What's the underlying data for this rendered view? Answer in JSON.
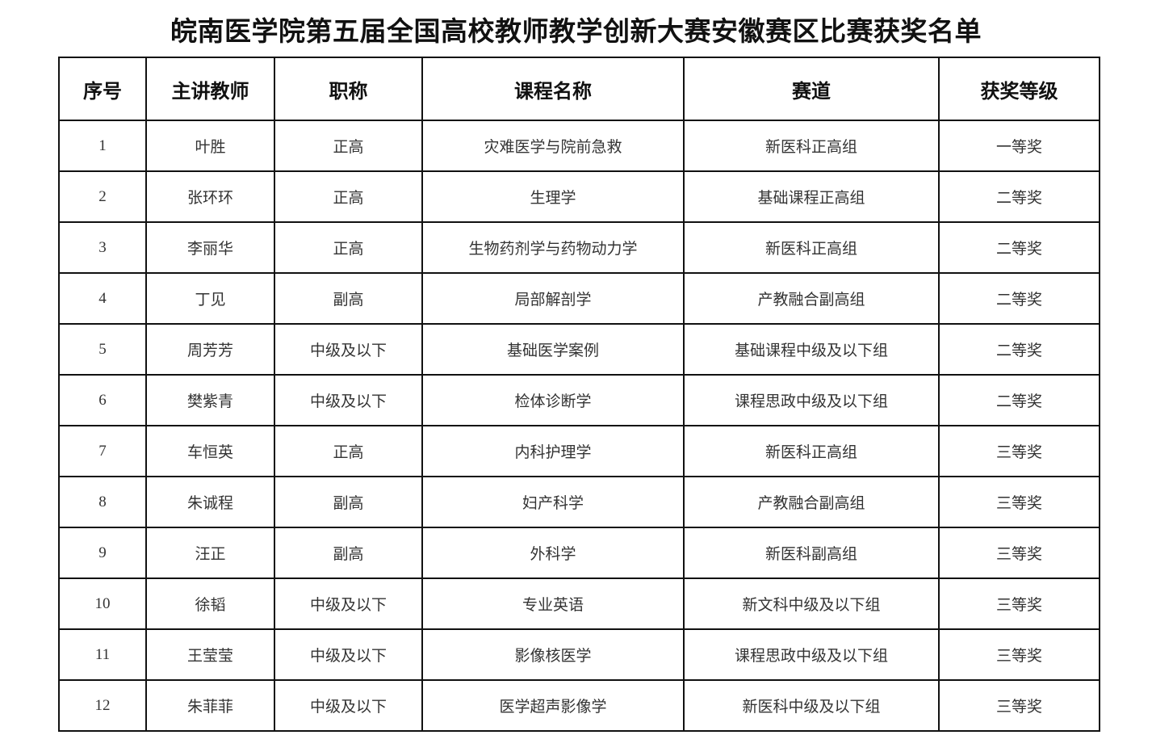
{
  "title": "皖南医学院第五届全国高校教师教学创新大赛安徽赛区比赛获奖名单",
  "table": {
    "headers": [
      "序号",
      "主讲教师",
      "职称",
      "课程名称",
      "赛道",
      "获奖等级"
    ],
    "rows": [
      [
        "1",
        "叶胜",
        "正高",
        "灾难医学与院前急救",
        "新医科正高组",
        "一等奖"
      ],
      [
        "2",
        "张环环",
        "正高",
        "生理学",
        "基础课程正高组",
        "二等奖"
      ],
      [
        "3",
        "李丽华",
        "正高",
        "生物药剂学与药物动力学",
        "新医科正高组",
        "二等奖"
      ],
      [
        "4",
        "丁见",
        "副高",
        "局部解剖学",
        "产教融合副高组",
        "二等奖"
      ],
      [
        "5",
        "周芳芳",
        "中级及以下",
        "基础医学案例",
        "基础课程中级及以下组",
        "二等奖"
      ],
      [
        "6",
        "樊紫青",
        "中级及以下",
        "检体诊断学",
        "课程思政中级及以下组",
        "二等奖"
      ],
      [
        "7",
        "车恒英",
        "正高",
        "内科护理学",
        "新医科正高组",
        "三等奖"
      ],
      [
        "8",
        "朱诚程",
        "副高",
        "妇产科学",
        "产教融合副高组",
        "三等奖"
      ],
      [
        "9",
        "汪正",
        "副高",
        "外科学",
        "新医科副高组",
        "三等奖"
      ],
      [
        "10",
        "徐韬",
        "中级及以下",
        "专业英语",
        "新文科中级及以下组",
        "三等奖"
      ],
      [
        "11",
        "王莹莹",
        "中级及以下",
        "影像核医学",
        "课程思政中级及以下组",
        "三等奖"
      ],
      [
        "12",
        "朱菲菲",
        "中级及以下",
        "医学超声影像学",
        "新医科中级及以下组",
        "三等奖"
      ]
    ]
  }
}
